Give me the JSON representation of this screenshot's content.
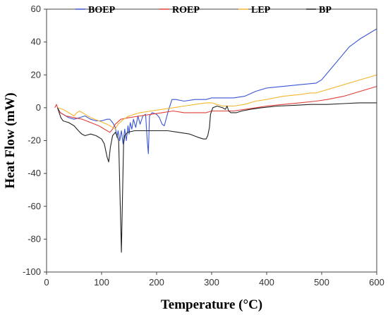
{
  "chart_data": {
    "type": "line",
    "xlabel": "Temperature (°C)",
    "ylabel": "Heat Flow (mW)",
    "xlim": [
      0,
      600
    ],
    "ylim": [
      -100,
      60
    ],
    "xticks": [
      "0",
      "100",
      "200",
      "300",
      "400",
      "500",
      "600"
    ],
    "yticks": [
      "60",
      "40",
      "20",
      "0",
      "-20",
      "-40",
      "-60",
      "-80",
      "-100"
    ],
    "grid": false,
    "legend_position": "top",
    "series": [
      {
        "name": "BOEP",
        "color": "#3a56d4",
        "points": [
          [
            20,
            0
          ],
          [
            25,
            -3
          ],
          [
            30,
            -4
          ],
          [
            40,
            -6
          ],
          [
            50,
            -7
          ],
          [
            60,
            -6
          ],
          [
            70,
            -5
          ],
          [
            80,
            -7
          ],
          [
            90,
            -8
          ],
          [
            100,
            -8
          ],
          [
            110,
            -7
          ],
          [
            115,
            -7
          ],
          [
            120,
            -9
          ],
          [
            125,
            -12
          ],
          [
            128,
            -18
          ],
          [
            130,
            -14
          ],
          [
            133,
            -20
          ],
          [
            136,
            -14
          ],
          [
            139,
            -22
          ],
          [
            142,
            -13
          ],
          [
            145,
            -20
          ],
          [
            148,
            -11
          ],
          [
            150,
            -16
          ],
          [
            152,
            -9
          ],
          [
            155,
            -13
          ],
          [
            158,
            -7
          ],
          [
            162,
            -12
          ],
          [
            166,
            -5
          ],
          [
            170,
            -10
          ],
          [
            175,
            -5
          ],
          [
            180,
            -4
          ],
          [
            183,
            -20
          ],
          [
            185,
            -28
          ],
          [
            187,
            -5
          ],
          [
            192,
            -3
          ],
          [
            200,
            -4
          ],
          [
            205,
            -6
          ],
          [
            210,
            -10
          ],
          [
            214,
            -11
          ],
          [
            218,
            -6
          ],
          [
            222,
            -1
          ],
          [
            228,
            5
          ],
          [
            235,
            5
          ],
          [
            250,
            4
          ],
          [
            270,
            5
          ],
          [
            290,
            5
          ],
          [
            300,
            6
          ],
          [
            320,
            6
          ],
          [
            340,
            6
          ],
          [
            360,
            7
          ],
          [
            380,
            10
          ],
          [
            400,
            12
          ],
          [
            430,
            13
          ],
          [
            460,
            14
          ],
          [
            490,
            15
          ],
          [
            500,
            17
          ],
          [
            510,
            21
          ],
          [
            530,
            29
          ],
          [
            550,
            37
          ],
          [
            570,
            42
          ],
          [
            590,
            46
          ],
          [
            600,
            48
          ]
        ]
      },
      {
        "name": "ROEP",
        "color": "#e0403a",
        "points": [
          [
            15,
            0
          ],
          [
            18,
            2
          ],
          [
            21,
            -1
          ],
          [
            25,
            -3
          ],
          [
            35,
            -5
          ],
          [
            50,
            -6
          ],
          [
            65,
            -7
          ],
          [
            80,
            -9
          ],
          [
            95,
            -11
          ],
          [
            110,
            -14
          ],
          [
            115,
            -15
          ],
          [
            120,
            -13
          ],
          [
            125,
            -10
          ],
          [
            135,
            -7
          ],
          [
            150,
            -6
          ],
          [
            170,
            -5
          ],
          [
            190,
            -4
          ],
          [
            210,
            -3
          ],
          [
            230,
            -2
          ],
          [
            250,
            -3
          ],
          [
            270,
            -3
          ],
          [
            290,
            -3
          ],
          [
            300,
            -2
          ],
          [
            320,
            -2
          ],
          [
            340,
            -2
          ],
          [
            360,
            -1
          ],
          [
            380,
            0
          ],
          [
            400,
            1
          ],
          [
            430,
            2
          ],
          [
            460,
            3
          ],
          [
            490,
            4
          ],
          [
            510,
            5
          ],
          [
            540,
            7
          ],
          [
            570,
            10
          ],
          [
            600,
            13
          ]
        ]
      },
      {
        "name": "LEP",
        "color": "#f5b731",
        "points": [
          [
            20,
            0
          ],
          [
            30,
            -1
          ],
          [
            40,
            -3
          ],
          [
            50,
            -5
          ],
          [
            55,
            -3
          ],
          [
            60,
            -2
          ],
          [
            65,
            -3
          ],
          [
            70,
            -4
          ],
          [
            80,
            -6
          ],
          [
            95,
            -8
          ],
          [
            110,
            -10
          ],
          [
            120,
            -12
          ],
          [
            125,
            -13
          ],
          [
            130,
            -10
          ],
          [
            140,
            -7
          ],
          [
            150,
            -5
          ],
          [
            170,
            -3
          ],
          [
            190,
            -2
          ],
          [
            210,
            -1
          ],
          [
            230,
            0
          ],
          [
            250,
            1
          ],
          [
            270,
            2
          ],
          [
            290,
            3
          ],
          [
            300,
            3
          ],
          [
            310,
            2
          ],
          [
            320,
            1
          ],
          [
            340,
            1
          ],
          [
            360,
            2
          ],
          [
            380,
            4
          ],
          [
            400,
            5
          ],
          [
            430,
            7
          ],
          [
            460,
            8
          ],
          [
            480,
            9
          ],
          [
            490,
            9
          ],
          [
            510,
            11
          ],
          [
            540,
            14
          ],
          [
            570,
            17
          ],
          [
            590,
            19
          ],
          [
            600,
            20
          ]
        ]
      },
      {
        "name": "BP",
        "color": "#222222",
        "points": [
          [
            20,
            0
          ],
          [
            23,
            -3
          ],
          [
            26,
            -6
          ],
          [
            30,
            -8
          ],
          [
            40,
            -9
          ],
          [
            50,
            -11
          ],
          [
            58,
            -14
          ],
          [
            64,
            -16
          ],
          [
            70,
            -17
          ],
          [
            80,
            -16
          ],
          [
            90,
            -17
          ],
          [
            100,
            -19
          ],
          [
            105,
            -22
          ],
          [
            110,
            -30
          ],
          [
            113,
            -33
          ],
          [
            116,
            -24
          ],
          [
            120,
            -17
          ],
          [
            125,
            -15
          ],
          [
            128,
            -17
          ],
          [
            131,
            -20
          ],
          [
            134,
            -60
          ],
          [
            136,
            -88
          ],
          [
            138,
            -55
          ],
          [
            140,
            -22
          ],
          [
            142,
            -17
          ],
          [
            147,
            -15
          ],
          [
            160,
            -14
          ],
          [
            180,
            -14
          ],
          [
            200,
            -14
          ],
          [
            220,
            -14
          ],
          [
            240,
            -15
          ],
          [
            260,
            -16
          ],
          [
            275,
            -18
          ],
          [
            285,
            -19
          ],
          [
            290,
            -19
          ],
          [
            293,
            -17
          ],
          [
            296,
            -12
          ],
          [
            298,
            -4
          ],
          [
            302,
            0
          ],
          [
            310,
            1
          ],
          [
            320,
            0
          ],
          [
            325,
            -1
          ],
          [
            328,
            1
          ],
          [
            331,
            -2
          ],
          [
            335,
            -3
          ],
          [
            345,
            -3
          ],
          [
            355,
            -2
          ],
          [
            370,
            -1
          ],
          [
            390,
            0
          ],
          [
            420,
            1
          ],
          [
            450,
            1.5
          ],
          [
            480,
            2
          ],
          [
            510,
            2
          ],
          [
            540,
            2.5
          ],
          [
            570,
            3
          ],
          [
            600,
            3
          ]
        ]
      }
    ]
  }
}
